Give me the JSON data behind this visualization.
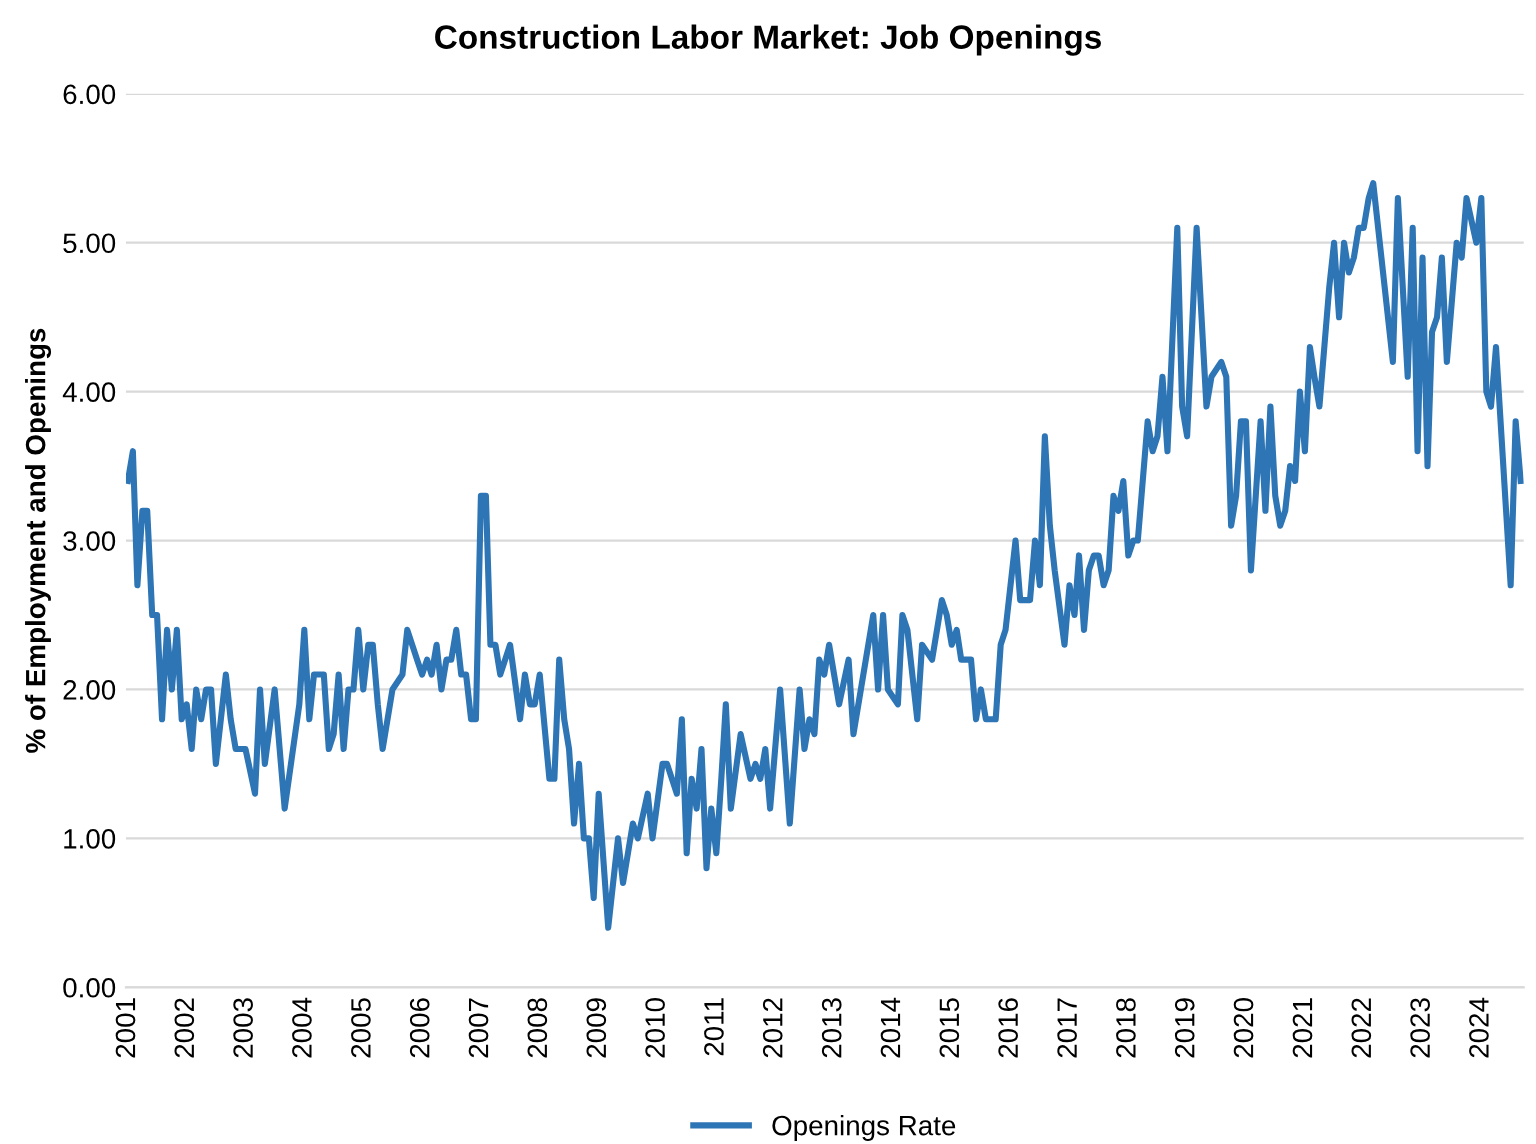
{
  "chart_data": {
    "type": "line",
    "title": "Construction Labor Market: Job Openings",
    "ylabel": "% of Employment and Openings",
    "series": [
      {
        "name": "Openings Rate",
        "color": "#2e75b6",
        "x": [
          "2001-01",
          "2001-02",
          "2001-03",
          "2001-04",
          "2001-05",
          "2001-06",
          "2001-07",
          "2001-08",
          "2001-09",
          "2001-10",
          "2001-11",
          "2001-12",
          "2002-01",
          "2002-02",
          "2002-03",
          "2002-04",
          "2002-05",
          "2002-06",
          "2002-07",
          "2002-09",
          "2002-10",
          "2002-11",
          "2003-01",
          "2003-03",
          "2003-04",
          "2003-05",
          "2003-07",
          "2003-09",
          "2003-12",
          "2004-01",
          "2004-02",
          "2004-03",
          "2004-05",
          "2004-06",
          "2004-07",
          "2004-08",
          "2004-09",
          "2004-10",
          "2004-11",
          "2004-12",
          "2005-01",
          "2005-02",
          "2005-03",
          "2005-04",
          "2005-05",
          "2005-07",
          "2005-09",
          "2005-10",
          "2005-12",
          "2006-01",
          "2006-02",
          "2006-03",
          "2006-04",
          "2006-05",
          "2006-06",
          "2006-07",
          "2006-08",
          "2006-09",
          "2006-10",
          "2006-11",
          "2006-12",
          "2007-01",
          "2007-02",
          "2007-03",
          "2007-04",
          "2007-05",
          "2007-07",
          "2007-09",
          "2007-10",
          "2007-11",
          "2007-12",
          "2008-01",
          "2008-03",
          "2008-04",
          "2008-05",
          "2008-06",
          "2008-07",
          "2008-08",
          "2008-09",
          "2008-10",
          "2008-11",
          "2008-12",
          "2009-01",
          "2009-03",
          "2009-05",
          "2009-06",
          "2009-08",
          "2009-09",
          "2009-11",
          "2009-12",
          "2010-02",
          "2010-03",
          "2010-05",
          "2010-06",
          "2010-07",
          "2010-08",
          "2010-09",
          "2010-10",
          "2010-11",
          "2010-12",
          "2011-01",
          "2011-02",
          "2011-03",
          "2011-04",
          "2011-06",
          "2011-08",
          "2011-09",
          "2011-10",
          "2011-11",
          "2011-12",
          "2012-02",
          "2012-04",
          "2012-06",
          "2012-07",
          "2012-08",
          "2012-09",
          "2012-10",
          "2012-11",
          "2012-12",
          "2013-02",
          "2013-04",
          "2013-05",
          "2013-09",
          "2013-10",
          "2013-11",
          "2013-12",
          "2014-02",
          "2014-03",
          "2014-04",
          "2014-06",
          "2014-07",
          "2014-09",
          "2014-11",
          "2014-12",
          "2015-01",
          "2015-02",
          "2015-03",
          "2015-05",
          "2015-06",
          "2015-07",
          "2015-08",
          "2015-10",
          "2015-11",
          "2015-12",
          "2016-02",
          "2016-03",
          "2016-05",
          "2016-06",
          "2016-07",
          "2016-08",
          "2016-09",
          "2016-10",
          "2016-12",
          "2017-01",
          "2017-02",
          "2017-03",
          "2017-04",
          "2017-05",
          "2017-06",
          "2017-07",
          "2017-08",
          "2017-09",
          "2017-10",
          "2017-11",
          "2017-12",
          "2018-01",
          "2018-02",
          "2018-03",
          "2018-05",
          "2018-06",
          "2018-07",
          "2018-08",
          "2018-09",
          "2018-11",
          "2018-12",
          "2019-01",
          "2019-03",
          "2019-05",
          "2019-06",
          "2019-08",
          "2019-09",
          "2019-10",
          "2019-11",
          "2019-12",
          "2020-01",
          "2020-02",
          "2020-04",
          "2020-05",
          "2020-06",
          "2020-07",
          "2020-08",
          "2020-09",
          "2020-10",
          "2020-11",
          "2020-12",
          "2021-01",
          "2021-02",
          "2021-03",
          "2021-04",
          "2021-06",
          "2021-07",
          "2021-08",
          "2021-09",
          "2021-10",
          "2021-11",
          "2021-12",
          "2022-01",
          "2022-02",
          "2022-03",
          "2022-07",
          "2022-08",
          "2022-10",
          "2022-11",
          "2022-12",
          "2023-01",
          "2023-02",
          "2023-03",
          "2023-04",
          "2023-05",
          "2023-06",
          "2023-08",
          "2023-09",
          "2023-10",
          "2023-12",
          "2024-01",
          "2024-02",
          "2024-03",
          "2024-04",
          "2024-07",
          "2024-08",
          "2024-09"
        ],
        "values": [
          3.4,
          3.6,
          2.7,
          3.2,
          3.2,
          2.5,
          2.5,
          1.8,
          2.4,
          2.0,
          2.4,
          1.8,
          1.9,
          1.6,
          2.0,
          1.8,
          2.0,
          2.0,
          1.5,
          2.1,
          1.8,
          1.6,
          1.6,
          1.3,
          2.0,
          1.5,
          2.0,
          1.2,
          1.9,
          2.4,
          1.8,
          2.1,
          2.1,
          1.6,
          1.7,
          2.1,
          1.6,
          2.0,
          2.0,
          2.4,
          2.0,
          2.3,
          2.3,
          1.9,
          1.6,
          2.0,
          2.1,
          2.4,
          2.2,
          2.1,
          2.2,
          2.1,
          2.3,
          2.0,
          2.2,
          2.2,
          2.4,
          2.1,
          2.1,
          1.8,
          1.8,
          3.3,
          3.3,
          2.3,
          2.3,
          2.1,
          2.3,
          1.8,
          2.1,
          1.9,
          1.9,
          2.1,
          1.4,
          1.4,
          2.2,
          1.8,
          1.6,
          1.1,
          1.5,
          1.0,
          1.0,
          0.6,
          1.3,
          0.4,
          1.0,
          0.7,
          1.1,
          1.0,
          1.3,
          1.0,
          1.5,
          1.5,
          1.3,
          1.8,
          0.9,
          1.4,
          1.2,
          1.6,
          0.8,
          1.2,
          0.9,
          1.4,
          1.9,
          1.2,
          1.7,
          1.4,
          1.5,
          1.4,
          1.6,
          1.2,
          2.0,
          1.1,
          2.0,
          1.6,
          1.8,
          1.7,
          2.2,
          2.1,
          2.3,
          1.9,
          2.2,
          1.7,
          2.5,
          2.0,
          2.5,
          2.0,
          1.9,
          2.5,
          2.4,
          1.8,
          2.3,
          2.2,
          2.6,
          2.5,
          2.3,
          2.4,
          2.2,
          2.2,
          1.8,
          2.0,
          1.8,
          1.8,
          2.3,
          2.4,
          3.0,
          2.6,
          2.6,
          3.0,
          2.7,
          3.7,
          3.1,
          2.8,
          2.3,
          2.7,
          2.5,
          2.9,
          2.4,
          2.8,
          2.9,
          2.9,
          2.7,
          2.8,
          3.3,
          3.2,
          3.4,
          2.9,
          3.0,
          3.0,
          3.8,
          3.6,
          3.7,
          4.1,
          3.6,
          5.1,
          3.9,
          3.7,
          5.1,
          3.9,
          4.1,
          4.2,
          4.1,
          3.1,
          3.3,
          3.8,
          3.8,
          2.8,
          3.8,
          3.2,
          3.9,
          3.3,
          3.1,
          3.2,
          3.5,
          3.4,
          4.0,
          3.6,
          4.3,
          4.1,
          3.9,
          4.7,
          5.0,
          4.5,
          5.0,
          4.8,
          4.9,
          5.1,
          5.1,
          5.3,
          5.4,
          4.2,
          5.3,
          4.1,
          5.1,
          3.6,
          4.9,
          3.5,
          4.4,
          4.5,
          4.9,
          4.2,
          5.0,
          4.9,
          5.3,
          5.0,
          5.3,
          4.0,
          3.9,
          4.3,
          2.7,
          3.8,
          3.4
        ]
      }
    ],
    "xlim": [
      "2000-12-20",
      "2024-09-20"
    ],
    "xticks": [
      {
        "value": "2001-01",
        "label": "2001"
      },
      {
        "value": "2002-01",
        "label": "2002"
      },
      {
        "value": "2003-01",
        "label": "2003"
      },
      {
        "value": "2004-01",
        "label": "2004"
      },
      {
        "value": "2005-01",
        "label": "2005"
      },
      {
        "value": "2006-01",
        "label": "2006"
      },
      {
        "value": "2007-01",
        "label": "2007"
      },
      {
        "value": "2008-01",
        "label": "2008"
      },
      {
        "value": "2009-01",
        "label": "2009"
      },
      {
        "value": "2010-01",
        "label": "2010"
      },
      {
        "value": "2011-01",
        "label": "2011"
      },
      {
        "value": "2012-01",
        "label": "2012"
      },
      {
        "value": "2013-01",
        "label": "2013"
      },
      {
        "value": "2014-01",
        "label": "2014"
      },
      {
        "value": "2015-01",
        "label": "2015"
      },
      {
        "value": "2016-01",
        "label": "2016"
      },
      {
        "value": "2017-01",
        "label": "2017"
      },
      {
        "value": "2018-01",
        "label": "2018"
      },
      {
        "value": "2019-01",
        "label": "2019"
      },
      {
        "value": "2020-01",
        "label": "2020"
      },
      {
        "value": "2021-01",
        "label": "2021"
      },
      {
        "value": "2022-01",
        "label": "2022"
      },
      {
        "value": "2023-01",
        "label": "2023"
      },
      {
        "value": "2024-01",
        "label": "2024"
      }
    ],
    "ylim": [
      0,
      6
    ],
    "yticks": [
      {
        "value": 0,
        "label": "0.00"
      },
      {
        "value": 1,
        "label": "1.00"
      },
      {
        "value": 2,
        "label": "2.00"
      },
      {
        "value": 3,
        "label": "3.00"
      },
      {
        "value": 4,
        "label": "4.00"
      },
      {
        "value": 5,
        "label": "5.00"
      },
      {
        "value": 6,
        "label": "6.00"
      }
    ],
    "grid": "y",
    "legend": "bottom",
    "marker": "none",
    "line_style": "solid"
  }
}
